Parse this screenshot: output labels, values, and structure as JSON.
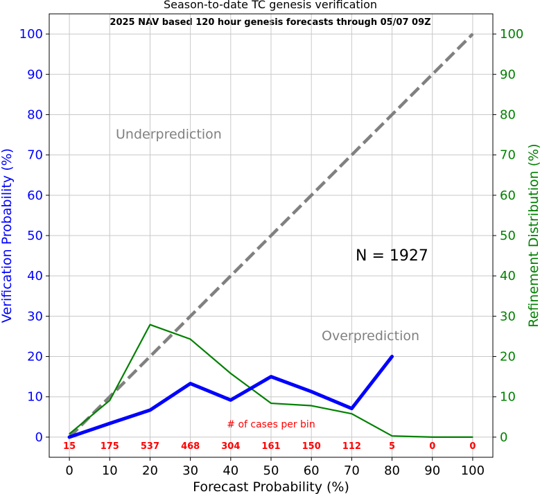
{
  "chart_data": {
    "type": "line",
    "title": "Season-to-date TC genesis verification",
    "subtitle": "2025 NAV based 120 hour genesis forecasts through 05/07 09Z",
    "xlabel": "Forecast Probability (%)",
    "ylabel_left": "Verification Probability (%)",
    "ylabel_right": "Refinement Distribution (%)",
    "xlim": [
      -5,
      105
    ],
    "ylim": [
      -5,
      105
    ],
    "x_ticks": [
      0,
      10,
      20,
      30,
      40,
      50,
      60,
      70,
      80,
      90,
      100
    ],
    "y_ticks": [
      0,
      10,
      20,
      30,
      40,
      50,
      60,
      70,
      80,
      90,
      100
    ],
    "grid": true,
    "colors": {
      "verification": "#0000ff",
      "refinement": "#008000",
      "perfect": "#808080",
      "counts": "#ff0000",
      "grid": "#c8c8c8"
    },
    "series": [
      {
        "key": "perfect",
        "x": [
          0,
          100
        ],
        "y": [
          0,
          100
        ],
        "style": "dashed"
      },
      {
        "key": "verification",
        "x": [
          0,
          10,
          20,
          30,
          40,
          50,
          60,
          70,
          80
        ],
        "y": [
          0,
          3.4,
          6.7,
          13.3,
          9.2,
          15.0,
          11.3,
          7.1,
          20.0
        ],
        "style": "thick"
      },
      {
        "key": "refinement",
        "x": [
          0,
          10,
          20,
          30,
          40,
          50,
          60,
          70,
          80,
          90,
          100
        ],
        "y": [
          0.8,
          9.1,
          27.9,
          24.3,
          15.8,
          8.4,
          7.8,
          5.8,
          0.3,
          0,
          0
        ],
        "style": "thin"
      }
    ],
    "counts_title": "# of cases per bin",
    "counts": {
      "x": [
        0,
        10,
        20,
        30,
        40,
        50,
        60,
        70,
        80,
        90,
        100
      ],
      "labels": [
        "15",
        "175",
        "537",
        "468",
        "304",
        "161",
        "150",
        "112",
        "5",
        "0",
        "0"
      ]
    },
    "annotations": {
      "underprediction": "Underprediction",
      "overprediction": "Overprediction",
      "n_label": "N = 1927"
    }
  }
}
